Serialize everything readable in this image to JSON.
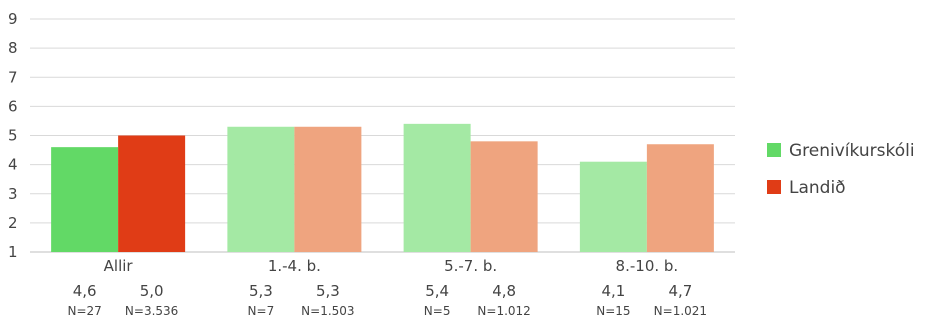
{
  "chart_data": {
    "type": "bar",
    "title": "",
    "xlabel": "",
    "ylabel": "",
    "ylim": [
      1,
      9
    ],
    "yticks": [
      "1",
      "2",
      "3",
      "4",
      "5",
      "6",
      "7",
      "8",
      "9"
    ],
    "grid": true,
    "legend_position": "right",
    "categories": [
      "Allir",
      "1.-4. b.",
      "5.-7. b.",
      "8.-10. b."
    ],
    "series": [
      {
        "name": "Grenivíkurskóli",
        "values": [
          4.6,
          5.3,
          5.4,
          4.1
        ],
        "value_labels": [
          "4,6",
          "5,3",
          "5,4",
          "4,1"
        ],
        "n_labels": [
          "N=27",
          "N=7",
          "N=5",
          "N=15"
        ],
        "color": "#62d966",
        "color_light": "#a4e9a4"
      },
      {
        "name": "Landið",
        "values": [
          5.0,
          5.3,
          4.8,
          4.7
        ],
        "value_labels": [
          "5,0",
          "5,3",
          "4,8",
          "4,7"
        ],
        "n_labels": [
          "N=3.536",
          "N=1.503",
          "N=1.012",
          "N=1.021"
        ],
        "color": "#e03c16",
        "color_light": "#efa47f"
      }
    ]
  }
}
